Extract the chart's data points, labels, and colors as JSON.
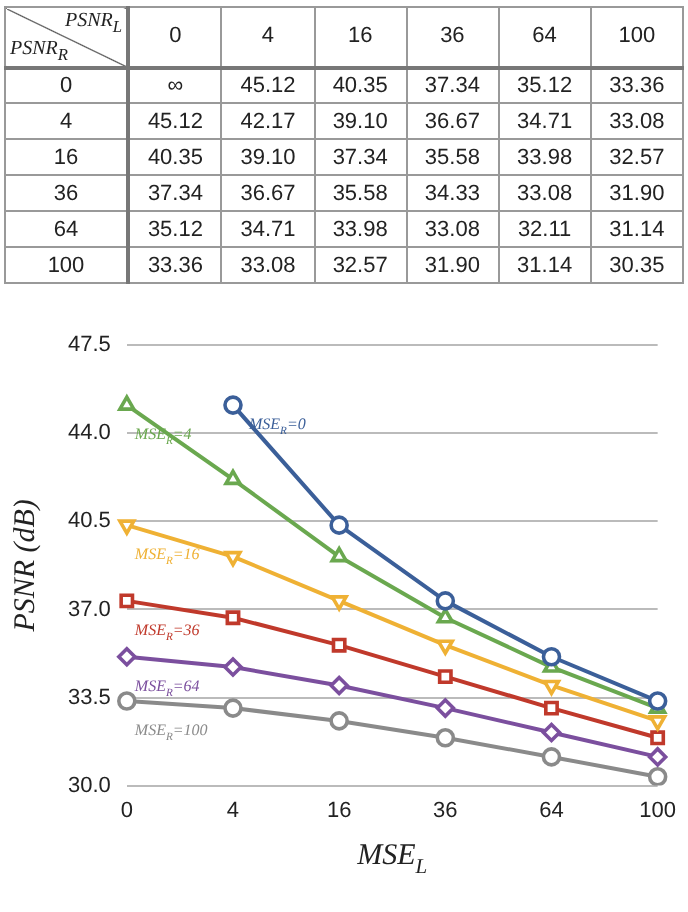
{
  "chart_data": {
    "type": "line",
    "xlabel": "MSE$_{L}$",
    "ylabel": "PSNR (dB)",
    "categories": [
      "0",
      "4",
      "16",
      "36",
      "64",
      "100"
    ],
    "ylim": [
      30,
      47.5
    ],
    "yticks": [
      {
        "value": 30,
        "label": "30.0"
      },
      {
        "value": 33.5,
        "label": "33.5"
      },
      {
        "value": 37,
        "label": "37.0"
      },
      {
        "value": 40.5,
        "label": "40.5"
      },
      {
        "value": 44,
        "label": "44.0"
      },
      {
        "value": 47.5,
        "label": "47.5"
      }
    ],
    "grid": "y",
    "line_style": "solid",
    "annotations": [
      "PSNR$_{L}$",
      "PSNR$_{R}$"
    ],
    "series": [
      {
        "name": "MSE$_{R}$=0",
        "color": "#3b5f99",
        "marker": "circle",
        "values": [
          null,
          45.12,
          40.35,
          37.34,
          35.12,
          33.36
        ],
        "value_labels": [
          "∞",
          "45.12",
          "40.35",
          "37.34",
          "35.12",
          "33.36"
        ]
      },
      {
        "name": "MSE$_{R}$=4",
        "color": "#6aa84f",
        "marker": "triangle",
        "values": [
          45.12,
          42.17,
          39.1,
          36.67,
          34.71,
          33.08
        ],
        "value_labels": [
          "45.12",
          "42.17",
          "39.10",
          "36.67",
          "34.71",
          "33.08"
        ]
      },
      {
        "name": "MSE$_{R}$=16",
        "color": "#efb134",
        "marker": "triangle_down",
        "values": [
          40.35,
          39.1,
          37.34,
          35.58,
          33.98,
          32.57
        ],
        "value_labels": [
          "40.35",
          "39.10",
          "37.34",
          "35.58",
          "33.98",
          "32.57"
        ]
      },
      {
        "name": "MSE$_{R}$=36",
        "color": "#c0392b",
        "marker": "square",
        "values": [
          37.34,
          36.67,
          35.58,
          34.33,
          33.08,
          31.9
        ],
        "value_labels": [
          "37.34",
          "36.67",
          "35.58",
          "34.33",
          "33.08",
          "31.90"
        ]
      },
      {
        "name": "MSE$_{R}$=64",
        "color": "#7b4f9e",
        "marker": "diamond",
        "values": [
          35.12,
          34.71,
          33.98,
          33.08,
          32.11,
          31.14
        ],
        "value_labels": [
          "35.12",
          "34.71",
          "33.98",
          "33.08",
          "32.11",
          "31.14"
        ]
      },
      {
        "name": "MSE$_{R}$=100",
        "color": "#8a8a8a",
        "marker": "circle",
        "values": [
          33.36,
          33.08,
          32.57,
          31.9,
          31.14,
          30.35
        ],
        "value_labels": [
          "33.36",
          "33.08",
          "32.57",
          "31.90",
          "31.14",
          "30.35"
        ]
      }
    ]
  }
}
